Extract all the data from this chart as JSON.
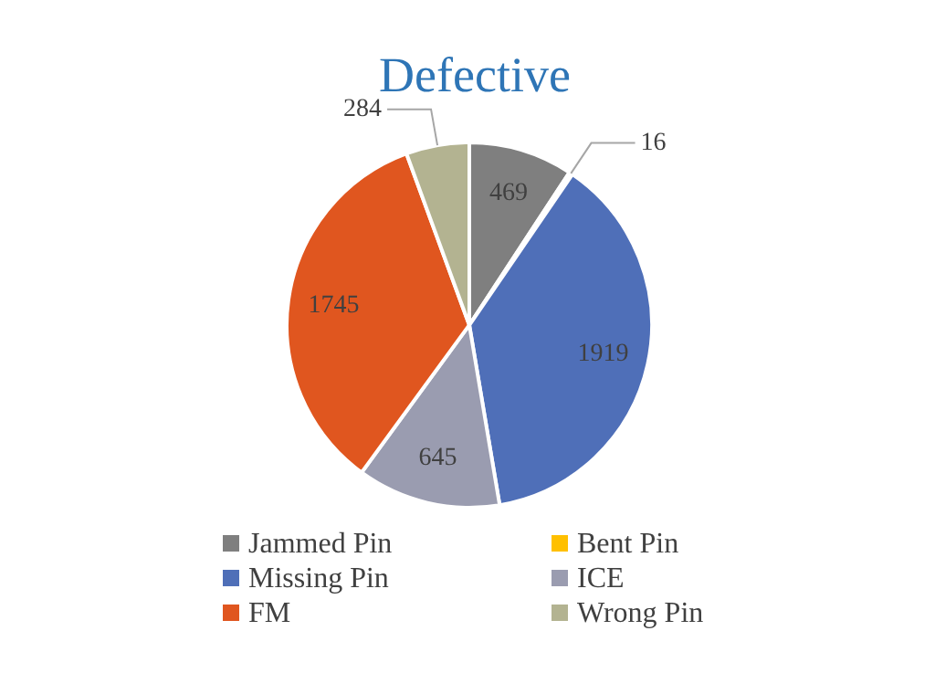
{
  "chart_data": {
    "type": "pie",
    "title": "Defective",
    "categories": [
      "Jammed Pin",
      "Bent Pin",
      "Missing Pin",
      "ICE",
      "FM",
      "Wrong Pin"
    ],
    "values": [
      469,
      16,
      1919,
      645,
      1745,
      284
    ],
    "colors": [
      "#7f7f7f",
      "#ffc000",
      "#4f6fb8",
      "#9a9cb0",
      "#e0561f",
      "#b3b391"
    ],
    "data_labels": true,
    "legend": "bottom"
  }
}
